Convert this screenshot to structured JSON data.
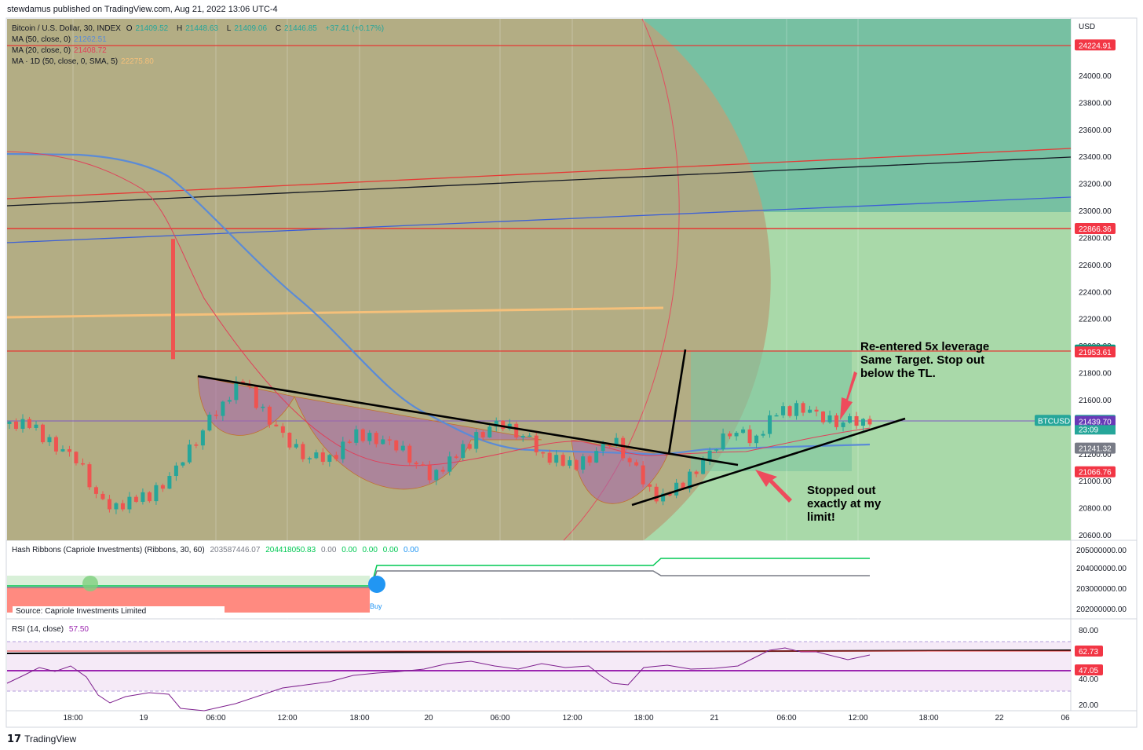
{
  "header": {
    "publisher": "stewdamus published on TradingView.com, Aug 21, 2022 13:06 UTC-4"
  },
  "footer": {
    "brand": "TradingView"
  },
  "legend": {
    "symbol": "Bitcoin / U.S. Dollar, 30, INDEX",
    "o_label": "O",
    "o_value": "21409.52",
    "h_label": "H",
    "h_value": "21448.63",
    "l_label": "L",
    "l_value": "21409.06",
    "c_label": "C",
    "c_value": "21446.85",
    "change": "+37.41 (+0.17%)",
    "ma50_label": "MA (50, close, 0)",
    "ma50_value": "21262.51",
    "ma20_label": "MA (20, close, 0)",
    "ma20_value": "21408.72",
    "ma1d_label": "MA · 1D (50, close, 0, SMA, 5)",
    "ma1d_value": "22275.80"
  },
  "hash_legend": {
    "label": "Hash Ribbons (Capriole Investments) (Ribbons, 30, 60)",
    "v1": "203587446.07",
    "v2": "204418050.83",
    "v3": "0.00",
    "v4": "0.00",
    "v5": "0.00",
    "v6": "0.00",
    "v7": "0.00"
  },
  "rsi_legend": {
    "label": "RSI (14, close)",
    "value": "57.50"
  },
  "annotations": {
    "reentry_1": "Re-entered 5x leverage",
    "reentry_2": "Same Target. Stop out",
    "reentry_3": "below the TL.",
    "stopped_1": "Stopped out",
    "stopped_2": "exactly at my",
    "stopped_3": "limit!",
    "source": "Source: Capriole Investments Limited",
    "buy": "Buy"
  },
  "colors": {
    "green": "#26a69a",
    "red": "#ef5350",
    "ma50": "#5b8bd6",
    "ma20": "#e0405a",
    "ma1d": "#f5c07a",
    "purple": "#9c27b0"
  },
  "chart_data": {
    "type": "candlestick",
    "symbol": "BTCUSD",
    "currency": "USD",
    "x_ticks": [
      "18:00",
      "19",
      "06:00",
      "12:00",
      "18:00",
      "20",
      "06:00",
      "12:00",
      "18:00",
      "21",
      "06:00",
      "12:00",
      "18:00",
      "22",
      "06"
    ],
    "y_ticks": [
      "24000.00",
      "23800.00",
      "23600.00",
      "23400.00",
      "23200.00",
      "23000.00",
      "22800.00",
      "22600.00",
      "22400.00",
      "22200.00",
      "22000.00",
      "21800.00",
      "21600.00",
      "21400.00",
      "21200.00",
      "21000.00",
      "20800.00",
      "20600.00"
    ],
    "price_tags": [
      {
        "text": "24224.91",
        "color": "#f23645"
      },
      {
        "text": "22866.36",
        "color": "#f23645"
      },
      {
        "text": "21967.11",
        "color": "#089981"
      },
      {
        "text": "21953.61",
        "color": "#f23645"
      },
      {
        "text": "21446.85",
        "color": "#26a69a"
      },
      {
        "text": "21439.70",
        "color": "#673ab7"
      },
      {
        "text": "21241.32",
        "color": "#787b86"
      },
      {
        "text": "21066.76",
        "color": "#f23645"
      }
    ],
    "last_label": "BTCUSD",
    "countdown": "23:09",
    "hash_ticks": [
      "205000000.00",
      "204000000.00",
      "203000000.00",
      "202000000.00"
    ],
    "rsi_ticks": [
      "80.00",
      "40.00",
      "20.00"
    ],
    "rsi_tags": [
      "62.73",
      "47.05"
    ],
    "close_path": [
      21420,
      21400,
      21260,
      21130,
      20810,
      20820,
      20900,
      21040,
      21290,
      21530,
      21740,
      21500,
      21270,
      21150,
      21180,
      21360,
      21300,
      21210,
      21020,
      21140,
      21330,
      21420,
      21340,
      21180,
      21110,
      21180,
      21300,
      21050,
      20840,
      21000,
      21170,
      21370,
      21290,
      21500,
      21560,
      21450,
      21420,
      21447
    ]
  }
}
